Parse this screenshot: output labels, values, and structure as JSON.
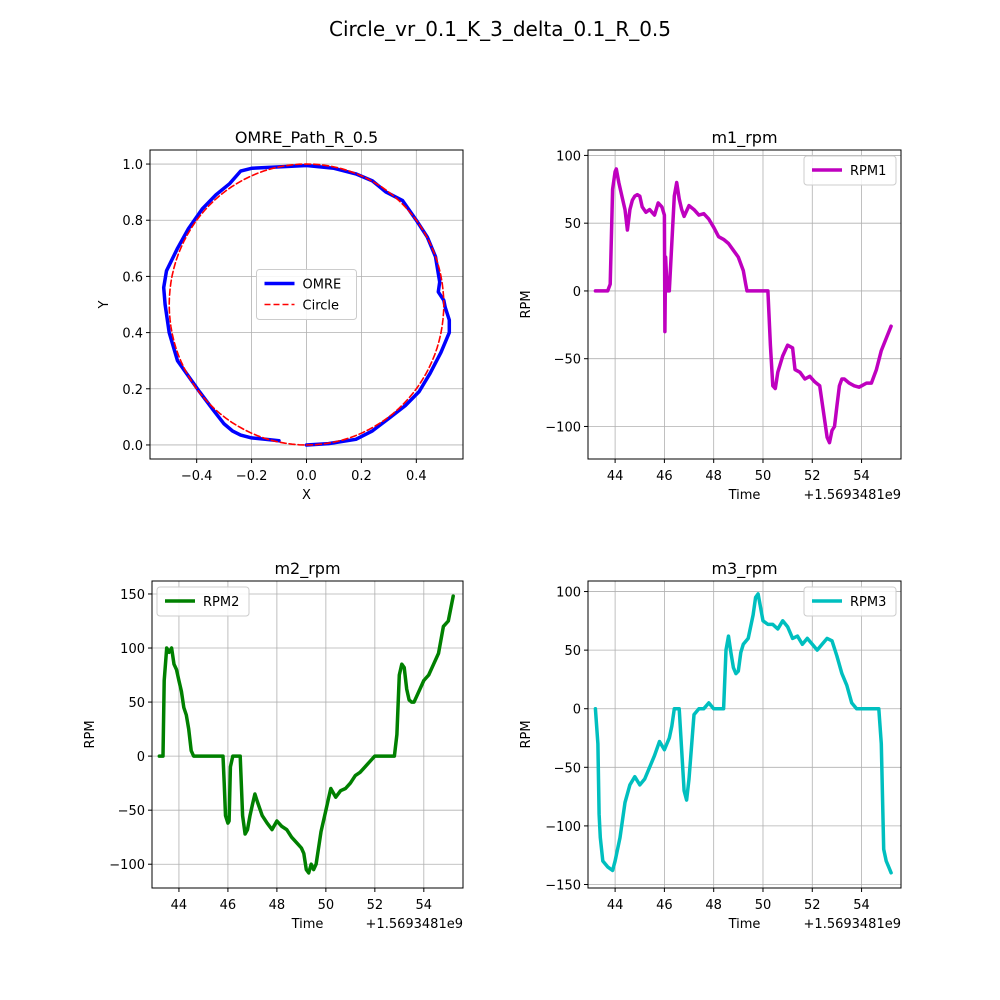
{
  "figure": {
    "title": "Circle_vr_0.1_K_3_delta_0.1_R_0.5"
  },
  "chart_data": [
    {
      "type": "line",
      "title": "OMRE_Path_R_0.5",
      "xlabel": "X",
      "ylabel": "Y",
      "xlim": [
        -0.57,
        0.57
      ],
      "ylim": [
        -0.05,
        1.05
      ],
      "xticks": [
        -0.4,
        -0.2,
        0.0,
        0.2,
        0.4
      ],
      "xtick_labels": [
        "−0.4",
        "−0.2",
        "0.0",
        "0.2",
        "0.4"
      ],
      "yticks": [
        0.0,
        0.2,
        0.4,
        0.6,
        0.8,
        1.0
      ],
      "ytick_labels": [
        "0.0",
        "0.2",
        "0.4",
        "0.6",
        "0.8",
        "1.0"
      ],
      "grid": true,
      "legend_position": "center",
      "series": [
        {
          "name": "OMRE",
          "color": "#0000ff",
          "style": "solid",
          "width": 3.5,
          "points": [
            [
              0.0,
              0.0
            ],
            [
              0.08,
              0.005
            ],
            [
              0.18,
              0.02
            ],
            [
              0.24,
              0.05
            ],
            [
              0.3,
              0.095
            ],
            [
              0.36,
              0.14
            ],
            [
              0.41,
              0.19
            ],
            [
              0.45,
              0.255
            ],
            [
              0.49,
              0.33
            ],
            [
              0.52,
              0.4
            ],
            [
              0.52,
              0.445
            ],
            [
              0.505,
              0.49
            ],
            [
              0.5,
              0.515
            ],
            [
              0.48,
              0.545
            ],
            [
              0.485,
              0.58
            ],
            [
              0.48,
              0.61
            ],
            [
              0.47,
              0.67
            ],
            [
              0.44,
              0.74
            ],
            [
              0.4,
              0.8
            ],
            [
              0.35,
              0.87
            ],
            [
              0.29,
              0.9
            ],
            [
              0.24,
              0.94
            ],
            [
              0.18,
              0.965
            ],
            [
              0.1,
              0.985
            ],
            [
              0.0,
              0.995
            ],
            [
              -0.1,
              0.99
            ],
            [
              -0.2,
              0.985
            ],
            [
              -0.24,
              0.975
            ],
            [
              -0.28,
              0.93
            ],
            [
              -0.33,
              0.89
            ],
            [
              -0.38,
              0.84
            ],
            [
              -0.43,
              0.77
            ],
            [
              -0.47,
              0.7
            ],
            [
              -0.51,
              0.62
            ],
            [
              -0.52,
              0.56
            ],
            [
              -0.515,
              0.5
            ],
            [
              -0.5,
              0.4
            ],
            [
              -0.47,
              0.3
            ],
            [
              -0.43,
              0.245
            ],
            [
              -0.39,
              0.19
            ],
            [
              -0.34,
              0.125
            ],
            [
              -0.3,
              0.075
            ],
            [
              -0.27,
              0.05
            ],
            [
              -0.24,
              0.035
            ],
            [
              -0.2,
              0.025
            ],
            [
              -0.15,
              0.02
            ],
            [
              -0.1,
              0.015
            ]
          ]
        },
        {
          "name": "Circle",
          "color": "#ff0000",
          "style": "dashed",
          "width": 1.6,
          "shape": "circle",
          "center": [
            0.0,
            0.5
          ],
          "radius": 0.5
        }
      ]
    },
    {
      "type": "line",
      "title": "m1_rpm",
      "xlabel": "Time",
      "ylabel": "RPM",
      "offset_label": "+1.5693481e9",
      "xlim": [
        42.9,
        55.6
      ],
      "ylim": [
        -124,
        104
      ],
      "xticks": [
        44,
        46,
        48,
        50,
        52,
        54
      ],
      "xtick_labels": [
        "44",
        "46",
        "48",
        "50",
        "52",
        "54"
      ],
      "yticks": [
        -100,
        -50,
        0,
        50,
        100
      ],
      "ytick_labels": [
        "−100",
        "−50",
        "0",
        "50",
        "100"
      ],
      "grid": true,
      "legend_position": "upper right",
      "series": [
        {
          "name": "RPM1",
          "color": "#bf00bf",
          "width": 3.5,
          "x": [
            43.2,
            43.5,
            43.7,
            43.8,
            43.9,
            44.0,
            44.05,
            44.15,
            44.3,
            44.4,
            44.5,
            44.6,
            44.7,
            44.8,
            44.9,
            45.0,
            45.1,
            45.25,
            45.4,
            45.6,
            45.75,
            45.9,
            46.0,
            46.02,
            46.05,
            46.1,
            46.15,
            46.2,
            46.4,
            46.5,
            46.6,
            46.7,
            46.8,
            47.0,
            47.2,
            47.4,
            47.6,
            47.8,
            48.0,
            48.2,
            48.4,
            48.6,
            48.8,
            49.0,
            49.2,
            49.3,
            49.35,
            49.5,
            49.8,
            50.0,
            50.2,
            50.3,
            50.4,
            50.5,
            50.6,
            50.8,
            51.0,
            51.2,
            51.3,
            51.5,
            51.7,
            51.9,
            52.1,
            52.3,
            52.5,
            52.6,
            52.7,
            52.8,
            52.9,
            53.0,
            53.1,
            53.2,
            53.3,
            53.5,
            53.7,
            53.9,
            54.0,
            54.2,
            54.4,
            54.6,
            54.8,
            55.0,
            55.2
          ],
          "y": [
            0,
            0,
            0,
            5,
            75,
            88,
            90,
            80,
            68,
            60,
            45,
            60,
            67,
            70,
            71,
            70,
            62,
            58,
            60,
            56,
            65,
            62,
            56,
            -30,
            25,
            5,
            0,
            0,
            70,
            80,
            68,
            60,
            55,
            63,
            60,
            56,
            57,
            53,
            47,
            40,
            38,
            35,
            30,
            25,
            15,
            5,
            0,
            0,
            0,
            0,
            0,
            -40,
            -70,
            -72,
            -60,
            -48,
            -40,
            -42,
            -58,
            -60,
            -65,
            -63,
            -67,
            -70,
            -95,
            -108,
            -112,
            -103,
            -100,
            -85,
            -70,
            -65,
            -65,
            -68,
            -70,
            -71,
            -70,
            -68,
            -68,
            -58,
            -44,
            -35,
            -26
          ]
        }
      ]
    },
    {
      "type": "line",
      "title": "m2_rpm",
      "xlabel": "Time",
      "ylabel": "RPM",
      "offset_label": "+1.5693481e9",
      "xlim": [
        42.9,
        55.6
      ],
      "ylim": [
        -122,
        162
      ],
      "xticks": [
        44,
        46,
        48,
        50,
        52,
        54
      ],
      "xtick_labels": [
        "44",
        "46",
        "48",
        "50",
        "52",
        "54"
      ],
      "yticks": [
        -100,
        -50,
        0,
        50,
        100,
        150
      ],
      "ytick_labels": [
        "−100",
        "−50",
        "0",
        "50",
        "100",
        "150"
      ],
      "grid": true,
      "legend_position": "upper left",
      "series": [
        {
          "name": "RPM2",
          "color": "#008000",
          "width": 3.5,
          "x": [
            43.2,
            43.35,
            43.4,
            43.5,
            43.6,
            43.7,
            43.8,
            43.9,
            44.0,
            44.1,
            44.2,
            44.3,
            44.4,
            44.5,
            44.6,
            44.8,
            45.0,
            45.5,
            45.8,
            45.85,
            45.9,
            46.0,
            46.05,
            46.1,
            46.2,
            46.4,
            46.5,
            46.6,
            46.7,
            46.8,
            46.9,
            47.0,
            47.1,
            47.2,
            47.4,
            47.6,
            47.8,
            48.0,
            48.2,
            48.4,
            48.6,
            48.8,
            49.0,
            49.1,
            49.2,
            49.3,
            49.4,
            49.5,
            49.6,
            49.8,
            50.0,
            50.1,
            50.2,
            50.4,
            50.6,
            50.8,
            51.0,
            51.2,
            51.4,
            51.6,
            51.8,
            52.0,
            52.2,
            52.4,
            52.6,
            52.8,
            52.9,
            53.0,
            53.1,
            53.2,
            53.3,
            53.4,
            53.5,
            53.6,
            53.7,
            53.9,
            54.0,
            54.2,
            54.4,
            54.6,
            54.8,
            55.0,
            55.2
          ],
          "y": [
            0,
            0,
            70,
            100,
            96,
            100,
            85,
            80,
            70,
            60,
            45,
            38,
            25,
            5,
            0,
            0,
            0,
            0,
            0,
            -25,
            -55,
            -62,
            -60,
            -10,
            0,
            0,
            0,
            -55,
            -72,
            -68,
            -55,
            -45,
            -35,
            -42,
            -55,
            -62,
            -68,
            -60,
            -65,
            -68,
            -75,
            -80,
            -85,
            -90,
            -105,
            -108,
            -100,
            -105,
            -100,
            -70,
            -50,
            -40,
            -30,
            -38,
            -32,
            -30,
            -25,
            -18,
            -15,
            -10,
            -5,
            0,
            0,
            0,
            0,
            0,
            20,
            75,
            85,
            82,
            62,
            52,
            50,
            50,
            55,
            65,
            70,
            75,
            85,
            95,
            120,
            125,
            148
          ]
        }
      ]
    },
    {
      "type": "line",
      "title": "m3_rpm",
      "xlabel": "Time",
      "ylabel": "RPM",
      "offset_label": "+1.5693481e9",
      "xlim": [
        42.9,
        55.6
      ],
      "ylim": [
        -153,
        109
      ],
      "xticks": [
        44,
        46,
        48,
        50,
        52,
        54
      ],
      "xtick_labels": [
        "44",
        "46",
        "48",
        "50",
        "52",
        "54"
      ],
      "yticks": [
        -150,
        -100,
        -50,
        0,
        50,
        100
      ],
      "ytick_labels": [
        "−150",
        "−100",
        "−50",
        "0",
        "50",
        "100"
      ],
      "grid": true,
      "legend_position": "upper right",
      "series": [
        {
          "name": "RPM3",
          "color": "#00bfbf",
          "width": 3.5,
          "x": [
            43.2,
            43.3,
            43.35,
            43.4,
            43.5,
            43.7,
            43.9,
            44.0,
            44.2,
            44.4,
            44.6,
            44.8,
            45.0,
            45.2,
            45.4,
            45.6,
            45.8,
            46.0,
            46.2,
            46.3,
            46.4,
            46.6,
            46.8,
            46.9,
            47.0,
            47.2,
            47.4,
            47.6,
            47.8,
            48.0,
            48.2,
            48.4,
            48.5,
            48.6,
            48.7,
            48.8,
            48.9,
            49.0,
            49.1,
            49.2,
            49.4,
            49.6,
            49.7,
            49.8,
            50.0,
            50.2,
            50.4,
            50.6,
            50.8,
            51.0,
            51.2,
            51.4,
            51.6,
            51.8,
            52.0,
            52.2,
            52.4,
            52.6,
            52.8,
            53.0,
            53.2,
            53.4,
            53.6,
            53.8,
            54.0,
            54.2,
            54.4,
            54.6,
            54.7,
            54.8,
            54.9,
            55.0,
            55.1,
            55.2
          ],
          "y": [
            0,
            -30,
            -90,
            -110,
            -130,
            -135,
            -138,
            -130,
            -110,
            -80,
            -65,
            -58,
            -65,
            -60,
            -50,
            -40,
            -28,
            -35,
            -25,
            -15,
            0,
            0,
            -70,
            -78,
            -60,
            -5,
            0,
            0,
            5,
            0,
            0,
            0,
            50,
            62,
            48,
            35,
            30,
            32,
            48,
            55,
            60,
            80,
            95,
            98,
            75,
            72,
            72,
            68,
            75,
            70,
            60,
            62,
            55,
            60,
            55,
            50,
            55,
            60,
            58,
            45,
            30,
            20,
            5,
            0,
            0,
            0,
            0,
            0,
            0,
            -30,
            -120,
            -130,
            -135,
            -140
          ]
        }
      ]
    }
  ]
}
